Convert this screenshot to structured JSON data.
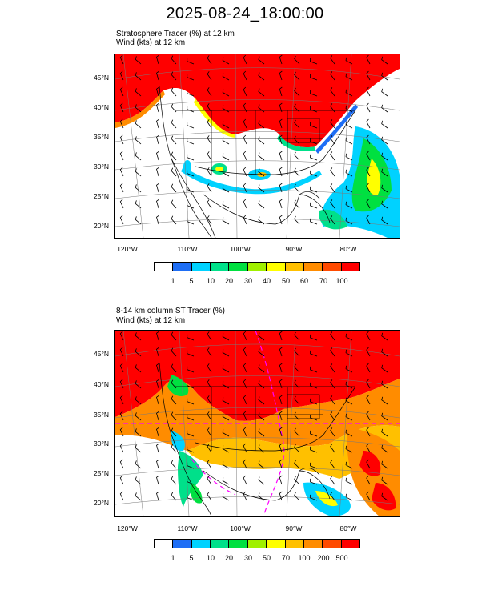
{
  "title": "2025-08-24_18:00:00",
  "colors": {
    "c0": "#ffffff",
    "c1": "#1e6ef5",
    "c2": "#00d2ff",
    "c3": "#00e08a",
    "c4": "#00e040",
    "c5": "#a0f000",
    "c6": "#ffff00",
    "c7": "#ffc000",
    "c8": "#ff8c00",
    "c9": "#ff4a00",
    "c10": "#ff0000"
  },
  "panel_top": {
    "label1": "Stratosphere Tracer   (%)     at   12 km",
    "label2": "Wind    (kts)      at   12 km",
    "lat_labels": [
      "45°N",
      "40°N",
      "35°N",
      "30°N",
      "25°N",
      "20°N"
    ],
    "lon_labels": [
      "120°W",
      "110°W",
      "100°W",
      "90°W",
      "80°W"
    ],
    "colorbar_levels": [
      "1",
      "5",
      "10",
      "20",
      "30",
      "40",
      "50",
      "60",
      "70",
      "100"
    ]
  },
  "panel_bottom": {
    "label1": "8-14 km column ST Tracer    (%)",
    "label2": "Wind    (kts)      at   12 km",
    "lat_labels": [
      "45°N",
      "40°N",
      "35°N",
      "30°N",
      "25°N",
      "20°N"
    ],
    "lon_labels": [
      "120°W",
      "110°W",
      "100°W",
      "90°W",
      "80°W"
    ],
    "colorbar_levels": [
      "1",
      "5",
      "10",
      "20",
      "30",
      "50",
      "70",
      "100",
      "200",
      "500"
    ]
  }
}
